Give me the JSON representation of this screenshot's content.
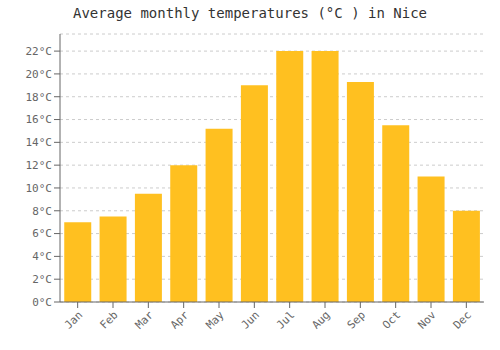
{
  "chart_data": {
    "type": "bar",
    "title": "Average monthly temperatures (°C ) in Nice",
    "categories": [
      "Jan",
      "Feb",
      "Mar",
      "Apr",
      "May",
      "Jun",
      "Jul",
      "Aug",
      "Sep",
      "Oct",
      "Nov",
      "Dec"
    ],
    "values": [
      7,
      7.5,
      9.5,
      12,
      15.2,
      19,
      22,
      22,
      19.3,
      15.5,
      11,
      8
    ],
    "color": "#FFC020",
    "ylim": [
      0,
      23.5
    ],
    "yticks": [
      {
        "value": 0,
        "label": "0°C"
      },
      {
        "value": 2,
        "label": "2°C"
      },
      {
        "value": 4,
        "label": "4°C"
      },
      {
        "value": 6,
        "label": "6°C"
      },
      {
        "value": 8,
        "label": "8°C"
      },
      {
        "value": 10,
        "label": "10°C"
      },
      {
        "value": 12,
        "label": "12°C"
      },
      {
        "value": 14,
        "label": "14°C"
      },
      {
        "value": 16,
        "label": "16°C"
      },
      {
        "value": 18,
        "label": "18°C"
      },
      {
        "value": 20,
        "label": "20°C"
      },
      {
        "value": 22,
        "label": "22°C"
      }
    ],
    "grid": true
  }
}
